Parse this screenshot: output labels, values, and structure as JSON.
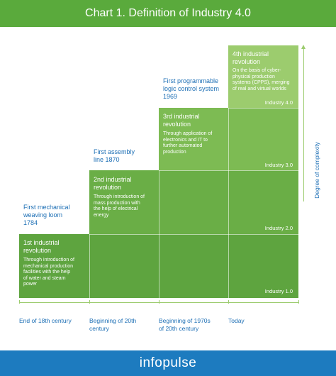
{
  "header": {
    "title": "Chart 1. Definition of Industry 4.0"
  },
  "revolutions": [
    {
      "title_line1": "1st industrial",
      "title_line2": "revolution",
      "desc": [
        "Through introduction of",
        "mechanical production",
        "facilities with the help",
        "of water and steam",
        "power"
      ],
      "industry": "Industry 1.0"
    },
    {
      "title_line1": "2nd industrial",
      "title_line2": "revolution",
      "desc": [
        "Through introduction of",
        "mass production with",
        "the help of electrical",
        "energy"
      ],
      "industry": "Industry 2.0"
    },
    {
      "title_line1": "3rd industrial",
      "title_line2": "revolution",
      "desc": [
        "Through application of",
        "electronics and IT to",
        "further automated",
        "production"
      ],
      "industry": "Industry 3.0"
    },
    {
      "title_line1": "4th industrial",
      "title_line2": "revolution",
      "desc": [
        "On the basis of cyber-",
        "physical production",
        "systems (CPPS), merging",
        "of real and virtual worlds"
      ],
      "industry": "Industry 4.0"
    }
  ],
  "milestones": [
    {
      "lines": [
        "First mechanical",
        "weaving loom",
        "1784"
      ]
    },
    {
      "lines": [
        "First assembly",
        "line 1870"
      ]
    },
    {
      "lines": [
        "First programmable",
        "logic control system",
        "1969"
      ]
    }
  ],
  "x_axis": {
    "labels": [
      {
        "lines": [
          "End of 18th century"
        ]
      },
      {
        "lines": [
          "Beginning of 20th",
          "century"
        ]
      },
      {
        "lines": [
          "Beginning of 1970s",
          "of 20th century"
        ]
      },
      {
        "lines": [
          "Today"
        ]
      }
    ]
  },
  "y_axis": {
    "label": "Degree of complexity"
  },
  "footer": {
    "brand": "infopulse"
  },
  "colors": {
    "header_green": "#5aaa3c",
    "footer_blue": "#1d7bbf",
    "text_blue": "#1d6fb5",
    "step1": "#5ea43f",
    "step2": "#6aae46",
    "step3": "#7dbb53",
    "step4": "#9ccc6e"
  }
}
